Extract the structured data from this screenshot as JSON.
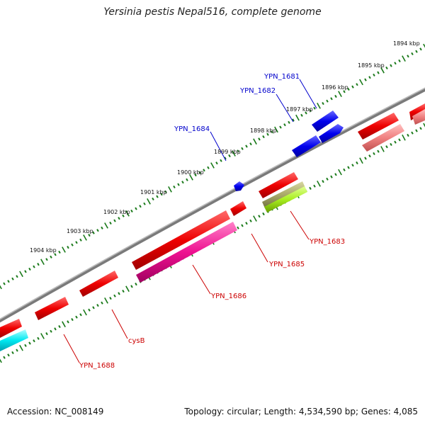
{
  "title": "Yersinia pestis Nepal516, complete genome",
  "footer": {
    "accession": "Accession: NC_008149",
    "summary": "Topology: circular; Length: 4,534,590 bp; Genes: 4,085"
  },
  "colors": {
    "backbone": "#8c8c8c",
    "tick": "#1a7a1a",
    "plus_strand_gene": "#e00000",
    "minus_strand_gene": "#0000dd",
    "label_plus": "#cc0000",
    "label_minus": "#0000cc"
  },
  "scale_labels": [
    "1894 kbp",
    "1895 kbp",
    "1896 kbp",
    "1897 kbp",
    "1898 kbp",
    "1899 kbp",
    "1900 kbp",
    "1901 kbp",
    "1902 kbp",
    "1903 kbp",
    "1904 kbp"
  ],
  "gene_labels_minus": [
    "YPN_1681",
    "YPN_1682",
    "YPN_1684"
  ],
  "gene_labels_plus": [
    "YPN_1683",
    "YPN_1685",
    "YPN_1686",
    "cysB",
    "YPN_1688"
  ]
}
